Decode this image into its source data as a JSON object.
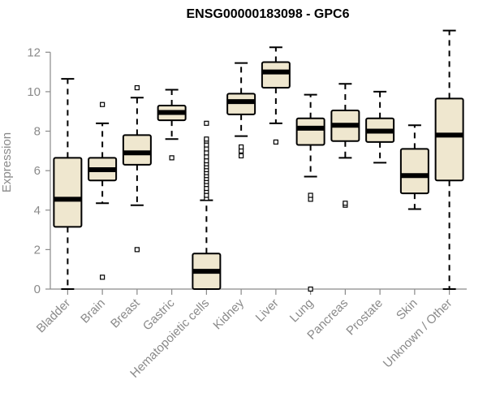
{
  "chart_data": {
    "type": "boxplot",
    "title": "ENSG00000183098 - GPC6",
    "xlabel": "",
    "ylabel": "Expression",
    "ylim": [
      0,
      13
    ],
    "yticks": [
      0,
      2,
      4,
      6,
      8,
      10,
      12
    ],
    "grid": false,
    "legend": "none",
    "colors": {
      "box_fill": "#efe7cf",
      "box_stroke": "#000000",
      "median": "#000000",
      "axis_text": "#8a8a8a",
      "title_text": "#000000"
    },
    "categories": [
      "Bladder",
      "Brain",
      "Breast",
      "Gastric",
      "Hematopoietic cells",
      "Kidney",
      "Liver",
      "Lung",
      "Pancreas",
      "Prostate",
      "Skin",
      "Unknown / Other"
    ],
    "boxes": [
      {
        "name": "Bladder",
        "min": 0.0,
        "q1": 3.15,
        "median": 4.55,
        "q3": 6.65,
        "max": 10.65,
        "outliers": []
      },
      {
        "name": "Brain",
        "min": 4.35,
        "q1": 5.5,
        "median": 6.05,
        "q3": 6.65,
        "max": 8.4,
        "outliers": [
          0.6,
          9.35
        ]
      },
      {
        "name": "Breast",
        "min": 4.25,
        "q1": 6.3,
        "median": 6.9,
        "q3": 7.8,
        "max": 9.7,
        "outliers": [
          2.0,
          10.2
        ]
      },
      {
        "name": "Gastric",
        "min": 7.6,
        "q1": 8.55,
        "median": 8.95,
        "q3": 9.3,
        "max": 10.1,
        "outliers": [
          6.65
        ]
      },
      {
        "name": "Hematopoietic cells",
        "min": 0.0,
        "q1": 0.0,
        "median": 0.9,
        "q3": 1.8,
        "max": 4.5,
        "outliers": [
          4.6,
          4.75,
          4.95,
          5.1,
          5.3,
          5.45,
          5.6,
          5.75,
          5.9,
          6.05,
          6.2,
          6.35,
          6.5,
          6.7,
          6.9,
          7.1,
          7.3,
          7.5,
          7.6,
          8.4
        ]
      },
      {
        "name": "Kidney",
        "min": 7.75,
        "q1": 8.85,
        "median": 9.5,
        "q3": 9.9,
        "max": 11.45,
        "outliers": [
          6.75,
          7.0,
          7.2
        ]
      },
      {
        "name": "Liver",
        "min": 8.4,
        "q1": 10.2,
        "median": 11.0,
        "q3": 11.5,
        "max": 12.25,
        "outliers": [
          7.45
        ]
      },
      {
        "name": "Lung",
        "min": 5.7,
        "q1": 7.3,
        "median": 8.15,
        "q3": 8.65,
        "max": 9.85,
        "outliers": [
          0.0,
          4.55,
          4.75
        ]
      },
      {
        "name": "Pancreas",
        "min": 6.65,
        "q1": 7.5,
        "median": 8.3,
        "q3": 9.05,
        "max": 10.4,
        "outliers": [
          4.25,
          4.35
        ]
      },
      {
        "name": "Prostate",
        "min": 6.4,
        "q1": 7.45,
        "median": 8.0,
        "q3": 8.65,
        "max": 10.0,
        "outliers": []
      },
      {
        "name": "Skin",
        "min": 4.05,
        "q1": 4.85,
        "median": 5.75,
        "q3": 7.1,
        "max": 8.3,
        "outliers": []
      },
      {
        "name": "Unknown / Other",
        "min": 0.0,
        "q1": 5.5,
        "median": 7.8,
        "q3": 9.65,
        "max": 13.1,
        "outliers": []
      }
    ]
  }
}
